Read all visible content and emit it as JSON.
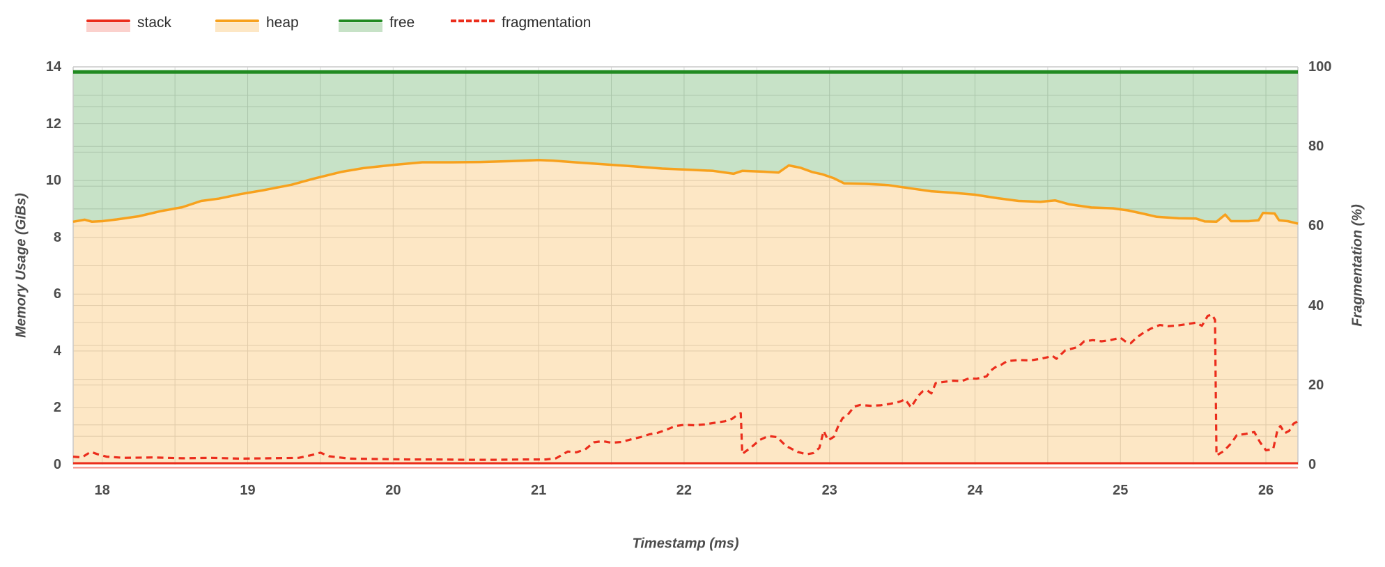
{
  "legend": {
    "items": [
      {
        "label": "stack",
        "color": "#eb2d1c",
        "fill": "rgba(235,45,28,0.22)",
        "style": "area"
      },
      {
        "label": "heap",
        "color": "#f7a11d",
        "fill": "rgba(247,161,29,0.26)",
        "style": "area"
      },
      {
        "label": "free",
        "color": "#218a21",
        "fill": "rgba(33,138,33,0.25)",
        "style": "area"
      },
      {
        "label": "fragmentation",
        "color": "#eb2d1c",
        "fill": "none",
        "style": "dashed-line"
      }
    ]
  },
  "colors": {
    "grid": "#d9d9d9",
    "border": "#c9c9c9",
    "tick_text": "#4c4c4c"
  },
  "chart_data": {
    "type": "area",
    "title": "",
    "xlabel": "Timestamp (ms)",
    "ylabel_left": "Memory Usage (GiBs)",
    "ylabel_right": "Fragmentation (%)",
    "x_range": [
      17.8,
      26.22
    ],
    "y_left_range": [
      0,
      14
    ],
    "y_right_range": [
      0,
      100
    ],
    "x_ticks": [
      18,
      19,
      20,
      21,
      22,
      23,
      24,
      25,
      26
    ],
    "y_left_ticks": [
      0,
      2,
      4,
      6,
      8,
      10,
      12,
      14
    ],
    "y_right_ticks": [
      0,
      20,
      40,
      60,
      80,
      100
    ],
    "grid": {
      "x_step": 0.5,
      "left_step": 1,
      "right_step": 10,
      "grid_on": true
    },
    "legend_position": "top-left",
    "series": [
      {
        "name": "stack",
        "axis": "left",
        "type": "line",
        "color": "#eb2d1c",
        "points": [
          [
            17.8,
            0.05
          ],
          [
            26.22,
            0.05
          ]
        ]
      },
      {
        "name": "heap",
        "axis": "left",
        "type": "area-line",
        "color": "#f7a11d",
        "points": [
          [
            17.8,
            8.55
          ],
          [
            17.88,
            8.62
          ],
          [
            17.93,
            8.55
          ],
          [
            18.0,
            8.57
          ],
          [
            18.1,
            8.63
          ],
          [
            18.25,
            8.74
          ],
          [
            18.4,
            8.92
          ],
          [
            18.55,
            9.06
          ],
          [
            18.68,
            9.28
          ],
          [
            18.8,
            9.36
          ],
          [
            18.95,
            9.52
          ],
          [
            19.1,
            9.65
          ],
          [
            19.3,
            9.85
          ],
          [
            19.45,
            10.06
          ],
          [
            19.64,
            10.3
          ],
          [
            19.8,
            10.44
          ],
          [
            20.0,
            10.55
          ],
          [
            20.2,
            10.64
          ],
          [
            20.4,
            10.64
          ],
          [
            20.6,
            10.65
          ],
          [
            20.8,
            10.68
          ],
          [
            21.0,
            10.72
          ],
          [
            21.1,
            10.7
          ],
          [
            21.25,
            10.64
          ],
          [
            21.45,
            10.57
          ],
          [
            21.65,
            10.5
          ],
          [
            21.85,
            10.42
          ],
          [
            22.03,
            10.38
          ],
          [
            22.2,
            10.34
          ],
          [
            22.34,
            10.24
          ],
          [
            22.4,
            10.34
          ],
          [
            22.55,
            10.31
          ],
          [
            22.65,
            10.28
          ],
          [
            22.72,
            10.53
          ],
          [
            22.8,
            10.45
          ],
          [
            22.88,
            10.3
          ],
          [
            22.95,
            10.22
          ],
          [
            23.03,
            10.08
          ],
          [
            23.1,
            9.9
          ],
          [
            23.25,
            9.88
          ],
          [
            23.4,
            9.84
          ],
          [
            23.55,
            9.73
          ],
          [
            23.7,
            9.62
          ],
          [
            23.85,
            9.57
          ],
          [
            24.0,
            9.5
          ],
          [
            24.15,
            9.38
          ],
          [
            24.3,
            9.28
          ],
          [
            24.45,
            9.25
          ],
          [
            24.55,
            9.3
          ],
          [
            24.65,
            9.16
          ],
          [
            24.8,
            9.05
          ],
          [
            24.95,
            9.02
          ],
          [
            25.05,
            8.95
          ],
          [
            25.15,
            8.84
          ],
          [
            25.25,
            8.72
          ],
          [
            25.4,
            8.67
          ],
          [
            25.52,
            8.66
          ],
          [
            25.58,
            8.56
          ],
          [
            25.66,
            8.55
          ],
          [
            25.72,
            8.8
          ],
          [
            25.76,
            8.57
          ],
          [
            25.88,
            8.57
          ],
          [
            25.95,
            8.6
          ],
          [
            25.98,
            8.86
          ],
          [
            26.06,
            8.84
          ],
          [
            26.09,
            8.6
          ],
          [
            26.15,
            8.57
          ],
          [
            26.22,
            8.48
          ]
        ]
      },
      {
        "name": "free",
        "axis": "left",
        "type": "area-line",
        "color": "#218a21",
        "points": [
          [
            17.8,
            13.82
          ],
          [
            26.22,
            13.82
          ]
        ]
      },
      {
        "name": "fragmentation",
        "axis": "right",
        "type": "dashed-line",
        "color": "#eb2d1c",
        "points": [
          [
            17.8,
            2.0
          ],
          [
            17.86,
            1.8
          ],
          [
            17.92,
            3.2
          ],
          [
            17.97,
            2.6
          ],
          [
            18.03,
            2.0
          ],
          [
            18.15,
            1.7
          ],
          [
            18.35,
            1.8
          ],
          [
            18.55,
            1.6
          ],
          [
            18.75,
            1.7
          ],
          [
            18.95,
            1.5
          ],
          [
            19.15,
            1.6
          ],
          [
            19.35,
            1.7
          ],
          [
            19.44,
            2.4
          ],
          [
            19.5,
            3.0
          ],
          [
            19.56,
            2.1
          ],
          [
            19.7,
            1.5
          ],
          [
            19.9,
            1.4
          ],
          [
            20.1,
            1.3
          ],
          [
            20.3,
            1.3
          ],
          [
            20.5,
            1.2
          ],
          [
            20.7,
            1.2
          ],
          [
            20.9,
            1.3
          ],
          [
            21.05,
            1.3
          ],
          [
            21.12,
            1.6
          ],
          [
            21.2,
            3.3
          ],
          [
            21.26,
            3.1
          ],
          [
            21.32,
            3.8
          ],
          [
            21.38,
            5.6
          ],
          [
            21.44,
            5.9
          ],
          [
            21.5,
            5.5
          ],
          [
            21.57,
            5.7
          ],
          [
            21.64,
            6.4
          ],
          [
            21.7,
            6.9
          ],
          [
            21.76,
            7.6
          ],
          [
            21.82,
            8.0
          ],
          [
            21.88,
            8.8
          ],
          [
            21.94,
            9.7
          ],
          [
            22.0,
            10.0
          ],
          [
            22.07,
            9.9
          ],
          [
            22.14,
            10.1
          ],
          [
            22.21,
            10.5
          ],
          [
            22.28,
            10.9
          ],
          [
            22.33,
            11.5
          ],
          [
            22.37,
            12.6
          ],
          [
            22.39,
            12.9
          ],
          [
            22.4,
            2.7
          ],
          [
            22.46,
            4.3
          ],
          [
            22.52,
            6.2
          ],
          [
            22.58,
            7.2
          ],
          [
            22.64,
            6.9
          ],
          [
            22.7,
            4.7
          ],
          [
            22.78,
            3.2
          ],
          [
            22.84,
            2.6
          ],
          [
            22.89,
            2.9
          ],
          [
            22.93,
            4.2
          ],
          [
            22.96,
            8.5
          ],
          [
            22.99,
            6.1
          ],
          [
            23.03,
            7.0
          ],
          [
            23.06,
            9.7
          ],
          [
            23.09,
            11.7
          ],
          [
            23.12,
            12.3
          ],
          [
            23.17,
            14.6
          ],
          [
            23.21,
            15.0
          ],
          [
            23.28,
            14.8
          ],
          [
            23.35,
            14.9
          ],
          [
            23.42,
            15.3
          ],
          [
            23.48,
            15.8
          ],
          [
            23.52,
            16.4
          ],
          [
            23.56,
            14.4
          ],
          [
            23.61,
            17.3
          ],
          [
            23.64,
            18.4
          ],
          [
            23.67,
            18.7
          ],
          [
            23.7,
            17.9
          ],
          [
            23.73,
            20.5
          ],
          [
            23.79,
            20.8
          ],
          [
            23.85,
            21.1
          ],
          [
            23.91,
            21.0
          ],
          [
            23.96,
            21.7
          ],
          [
            24.01,
            21.6
          ],
          [
            24.05,
            21.9
          ],
          [
            24.08,
            22.2
          ],
          [
            24.11,
            23.7
          ],
          [
            24.14,
            24.5
          ],
          [
            24.18,
            25.1
          ],
          [
            24.22,
            26.0
          ],
          [
            24.3,
            26.3
          ],
          [
            24.38,
            26.2
          ],
          [
            24.45,
            26.6
          ],
          [
            24.5,
            27.0
          ],
          [
            24.53,
            27.4
          ],
          [
            24.56,
            26.6
          ],
          [
            24.62,
            28.7
          ],
          [
            24.67,
            29.2
          ],
          [
            24.71,
            29.6
          ],
          [
            24.75,
            31.0
          ],
          [
            24.81,
            31.3
          ],
          [
            24.87,
            31.0
          ],
          [
            24.93,
            31.3
          ],
          [
            25.0,
            31.9
          ],
          [
            25.04,
            30.8
          ],
          [
            25.07,
            30.5
          ],
          [
            25.11,
            31.9
          ],
          [
            25.16,
            33.2
          ],
          [
            25.21,
            34.2
          ],
          [
            25.27,
            35.1
          ],
          [
            25.33,
            34.8
          ],
          [
            25.4,
            35.0
          ],
          [
            25.47,
            35.4
          ],
          [
            25.52,
            35.7
          ],
          [
            25.56,
            34.9
          ],
          [
            25.6,
            37.4
          ],
          [
            25.63,
            37.7
          ],
          [
            25.65,
            36.4
          ],
          [
            25.66,
            2.3
          ],
          [
            25.71,
            3.4
          ],
          [
            25.76,
            5.3
          ],
          [
            25.8,
            7.4
          ],
          [
            25.86,
            7.7
          ],
          [
            25.92,
            8.2
          ],
          [
            25.96,
            5.6
          ],
          [
            26.0,
            3.6
          ],
          [
            26.05,
            3.9
          ],
          [
            26.08,
            8.8
          ],
          [
            26.1,
            9.7
          ],
          [
            26.13,
            7.9
          ],
          [
            26.16,
            8.5
          ],
          [
            26.19,
            10.3
          ],
          [
            26.22,
            10.9
          ]
        ]
      }
    ]
  }
}
